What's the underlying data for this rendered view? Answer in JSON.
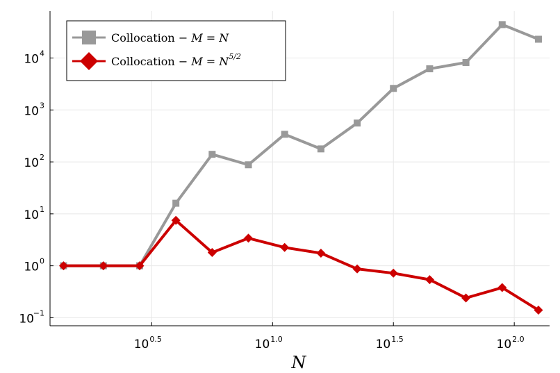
{
  "chart_data": {
    "type": "line",
    "xlabel": "N",
    "ylabel": "",
    "x_scale": "log10",
    "y_scale": "log10",
    "x": [
      1.365,
      1.995,
      2.818,
      3.981,
      5.623,
      7.943,
      11.22,
      15.85,
      22.39,
      31.62,
      44.67,
      63.1,
      89.13,
      125.9
    ],
    "xlim": [
      1.2,
      140
    ],
    "ylim": [
      0.07,
      80000
    ],
    "grid": true,
    "legend_position": "top-left",
    "x_ticks": [
      {
        "value": 3.162,
        "base": "10",
        "exp": "0.5"
      },
      {
        "value": 10,
        "base": "10",
        "exp": "1.0"
      },
      {
        "value": 31.62,
        "base": "10",
        "exp": "1.5"
      },
      {
        "value": 100,
        "base": "10",
        "exp": "2.0"
      }
    ],
    "y_ticks": [
      {
        "value": 0.1,
        "base": "10",
        "exp": "−1"
      },
      {
        "value": 1,
        "base": "10",
        "exp": "0"
      },
      {
        "value": 10,
        "base": "10",
        "exp": "1"
      },
      {
        "value": 100,
        "base": "10",
        "exp": "2"
      },
      {
        "value": 1000,
        "base": "10",
        "exp": "3"
      },
      {
        "value": 10000,
        "base": "10",
        "exp": "4"
      }
    ],
    "series": [
      {
        "name": "Collocation − M = N",
        "legend": {
          "prefix": "Collocation − ",
          "math": "M = N",
          "sup": ""
        },
        "color": "#999999",
        "marker": "square",
        "values": [
          1,
          1,
          1,
          16,
          140,
          88,
          340,
          178,
          560,
          2600,
          6200,
          8200,
          44000,
          23000
        ]
      },
      {
        "name": "Collocation − M = N^(5/2)",
        "legend": {
          "prefix": "Collocation − ",
          "math": "M = N",
          "sup": "5/2"
        },
        "color": "#cc0000",
        "marker": "diamond",
        "values": [
          1,
          1,
          1,
          7.5,
          1.8,
          3.4,
          2.25,
          1.75,
          0.87,
          0.72,
          0.54,
          0.24,
          0.38,
          0.14
        ]
      }
    ]
  }
}
